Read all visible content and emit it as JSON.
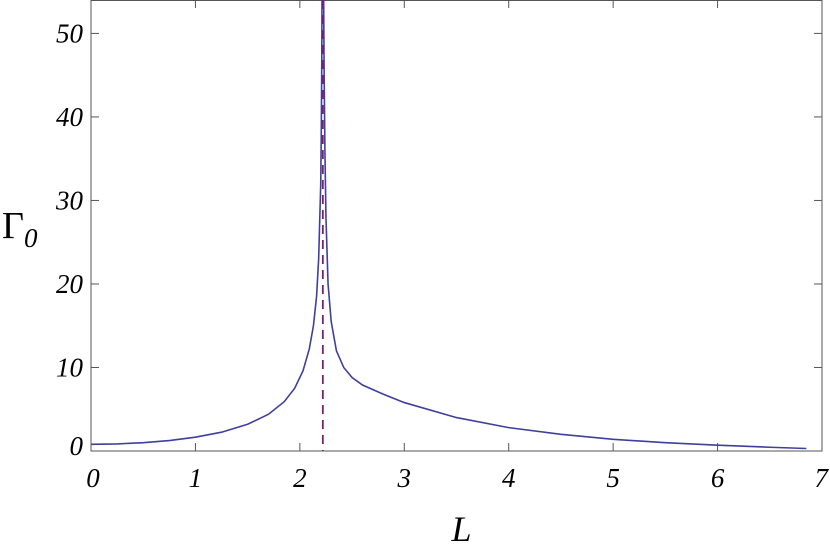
{
  "chart_data": {
    "type": "line",
    "title": "",
    "xlabel": "L",
    "ylabel": {
      "main": "Γ",
      "subscript": "0"
    },
    "xlim": [
      0,
      7
    ],
    "ylim": [
      0,
      54
    ],
    "x_ticks": [
      0,
      1,
      2,
      3,
      4,
      5,
      6,
      7
    ],
    "y_ticks": [
      0,
      10,
      20,
      30,
      40,
      50
    ],
    "x_tick_labels": [
      "0",
      "1",
      "2",
      "3",
      "4",
      "5",
      "6",
      "7"
    ],
    "y_tick_labels": [
      "0",
      "10",
      "20",
      "30",
      "40",
      "50"
    ],
    "grid": false,
    "colors": {
      "curve": "#3f3f9e",
      "asymptote": "#7a1f73",
      "frame": "#555555"
    },
    "vertical_line": {
      "x": 2.22,
      "style": "dashed"
    },
    "series": [
      {
        "x": [
          0,
          0.25,
          0.5,
          0.75,
          1.0,
          1.25,
          1.5,
          1.7,
          1.85,
          1.95,
          2.03,
          2.09,
          2.13,
          2.16,
          2.18,
          2.2,
          2.205,
          2.21,
          2.212
        ],
        "y": [
          0.8,
          0.85,
          1.0,
          1.25,
          1.65,
          2.25,
          3.2,
          4.4,
          5.9,
          7.5,
          9.6,
          12.2,
          15.0,
          18.5,
          23.0,
          32.0,
          38.0,
          47.0,
          54.0
        ]
      },
      {
        "x": [
          2.228,
          2.232,
          2.24,
          2.25,
          2.27,
          2.3,
          2.35,
          2.42,
          2.5,
          2.6,
          2.8,
          3.0,
          3.5,
          4.0,
          4.5,
          5.0,
          5.5,
          6.0,
          6.5,
          6.85
        ],
        "y": [
          54.0,
          46.0,
          36.0,
          28.0,
          20.0,
          15.5,
          12.0,
          10.0,
          8.8,
          7.9,
          6.8,
          5.8,
          4.0,
          2.8,
          2.0,
          1.4,
          1.0,
          0.7,
          0.45,
          0.3
        ]
      }
    ]
  }
}
